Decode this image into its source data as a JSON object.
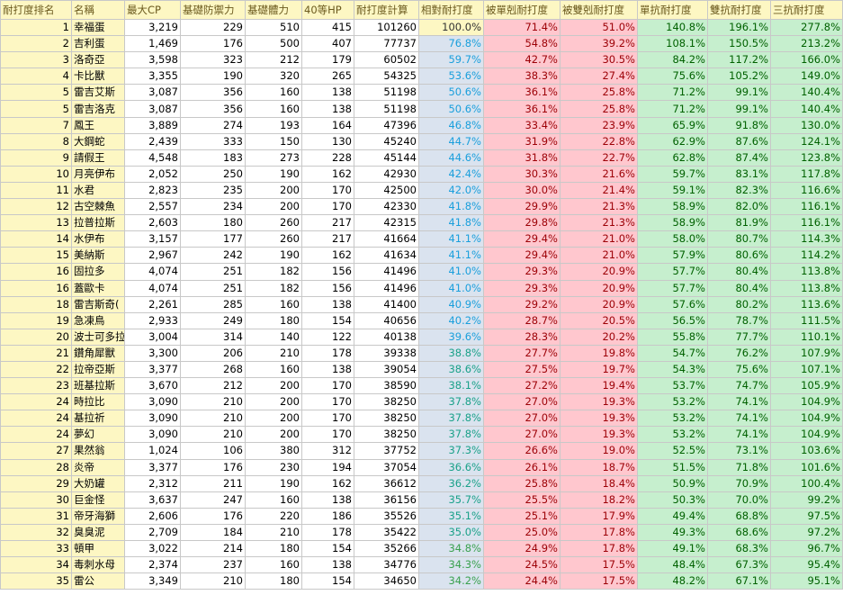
{
  "colors": {
    "header_bg": "#fdf7c3",
    "relative_bg": "#dae3ef",
    "weak_bg": "#ffc7ce",
    "weak_text": "#9c0006",
    "resist_bg": "#c6efce",
    "resist_text": "#006100",
    "relative_blue": "#1a9fdc",
    "relative_teal": "#1aa189",
    "relative_green": "#3aa14f"
  },
  "headers": [
    "耐打度排名",
    "名稱",
    "最大CP",
    "基礎防禦力",
    "基礎體力",
    "40等HP",
    "耐打度計算",
    "相對耐打度",
    "被單剋耐打度",
    "被雙剋耐打度",
    "單抗耐打度",
    "雙抗耐打度",
    "三抗耐打度"
  ],
  "rows": [
    {
      "rank": "1",
      "name": "幸福蛋",
      "cp": "3,219",
      "def": "229",
      "sta": "510",
      "hp": "415",
      "calc": "101260",
      "rel": "100.0%",
      "one": "71.4%",
      "two": "51.0%",
      "r1": "140.8%",
      "r2": "196.1%",
      "r3": "277.8%"
    },
    {
      "rank": "2",
      "name": "吉利蛋",
      "cp": "1,469",
      "def": "176",
      "sta": "500",
      "hp": "407",
      "calc": "77737",
      "rel": "76.8%",
      "one": "54.8%",
      "two": "39.2%",
      "r1": "108.1%",
      "r2": "150.5%",
      "r3": "213.2%"
    },
    {
      "rank": "3",
      "name": "洛奇亞",
      "cp": "3,598",
      "def": "323",
      "sta": "212",
      "hp": "179",
      "calc": "60502",
      "rel": "59.7%",
      "one": "42.7%",
      "two": "30.5%",
      "r1": "84.2%",
      "r2": "117.2%",
      "r3": "166.0%"
    },
    {
      "rank": "4",
      "name": "卡比獸",
      "cp": "3,355",
      "def": "190",
      "sta": "320",
      "hp": "265",
      "calc": "54325",
      "rel": "53.6%",
      "one": "38.3%",
      "two": "27.4%",
      "r1": "75.6%",
      "r2": "105.2%",
      "r3": "149.0%"
    },
    {
      "rank": "5",
      "name": "雷吉艾斯",
      "cp": "3,087",
      "def": "356",
      "sta": "160",
      "hp": "138",
      "calc": "51198",
      "rel": "50.6%",
      "one": "36.1%",
      "two": "25.8%",
      "r1": "71.2%",
      "r2": "99.1%",
      "r3": "140.4%"
    },
    {
      "rank": "5",
      "name": "雷吉洛克",
      "cp": "3,087",
      "def": "356",
      "sta": "160",
      "hp": "138",
      "calc": "51198",
      "rel": "50.6%",
      "one": "36.1%",
      "two": "25.8%",
      "r1": "71.2%",
      "r2": "99.1%",
      "r3": "140.4%"
    },
    {
      "rank": "7",
      "name": "鳳王",
      "cp": "3,889",
      "def": "274",
      "sta": "193",
      "hp": "164",
      "calc": "47396",
      "rel": "46.8%",
      "one": "33.4%",
      "two": "23.9%",
      "r1": "65.9%",
      "r2": "91.8%",
      "r3": "130.0%"
    },
    {
      "rank": "8",
      "name": "大鋼蛇",
      "cp": "2,439",
      "def": "333",
      "sta": "150",
      "hp": "130",
      "calc": "45240",
      "rel": "44.7%",
      "one": "31.9%",
      "two": "22.8%",
      "r1": "62.9%",
      "r2": "87.6%",
      "r3": "124.1%"
    },
    {
      "rank": "9",
      "name": "請假王",
      "cp": "4,548",
      "def": "183",
      "sta": "273",
      "hp": "228",
      "calc": "45144",
      "rel": "44.6%",
      "one": "31.8%",
      "two": "22.7%",
      "r1": "62.8%",
      "r2": "87.4%",
      "r3": "123.8%"
    },
    {
      "rank": "10",
      "name": "月亮伊布",
      "cp": "2,052",
      "def": "250",
      "sta": "190",
      "hp": "162",
      "calc": "42930",
      "rel": "42.4%",
      "one": "30.3%",
      "two": "21.6%",
      "r1": "59.7%",
      "r2": "83.1%",
      "r3": "117.8%"
    },
    {
      "rank": "11",
      "name": "水君",
      "cp": "2,823",
      "def": "235",
      "sta": "200",
      "hp": "170",
      "calc": "42500",
      "rel": "42.0%",
      "one": "30.0%",
      "two": "21.4%",
      "r1": "59.1%",
      "r2": "82.3%",
      "r3": "116.6%"
    },
    {
      "rank": "12",
      "name": "古空棘魚",
      "cp": "2,557",
      "def": "234",
      "sta": "200",
      "hp": "170",
      "calc": "42330",
      "rel": "41.8%",
      "one": "29.9%",
      "two": "21.3%",
      "r1": "58.9%",
      "r2": "82.0%",
      "r3": "116.1%"
    },
    {
      "rank": "13",
      "name": "拉普拉斯",
      "cp": "2,603",
      "def": "180",
      "sta": "260",
      "hp": "217",
      "calc": "42315",
      "rel": "41.8%",
      "one": "29.8%",
      "two": "21.3%",
      "r1": "58.9%",
      "r2": "81.9%",
      "r3": "116.1%"
    },
    {
      "rank": "14",
      "name": "水伊布",
      "cp": "3,157",
      "def": "177",
      "sta": "260",
      "hp": "217",
      "calc": "41664",
      "rel": "41.1%",
      "one": "29.4%",
      "two": "21.0%",
      "r1": "58.0%",
      "r2": "80.7%",
      "r3": "114.3%"
    },
    {
      "rank": "15",
      "name": "美納斯",
      "cp": "2,967",
      "def": "242",
      "sta": "190",
      "hp": "162",
      "calc": "41634",
      "rel": "41.1%",
      "one": "29.4%",
      "two": "21.0%",
      "r1": "57.9%",
      "r2": "80.6%",
      "r3": "114.2%"
    },
    {
      "rank": "16",
      "name": "固拉多",
      "cp": "4,074",
      "def": "251",
      "sta": "182",
      "hp": "156",
      "calc": "41496",
      "rel": "41.0%",
      "one": "29.3%",
      "two": "20.9%",
      "r1": "57.7%",
      "r2": "80.4%",
      "r3": "113.8%"
    },
    {
      "rank": "16",
      "name": "蓋歐卡",
      "cp": "4,074",
      "def": "251",
      "sta": "182",
      "hp": "156",
      "calc": "41496",
      "rel": "41.0%",
      "one": "29.3%",
      "two": "20.9%",
      "r1": "57.7%",
      "r2": "80.4%",
      "r3": "113.8%"
    },
    {
      "rank": "18",
      "name": "雷吉斯奇(",
      "cp": "2,261",
      "def": "285",
      "sta": "160",
      "hp": "138",
      "calc": "41400",
      "rel": "40.9%",
      "one": "29.2%",
      "two": "20.9%",
      "r1": "57.6%",
      "r2": "80.2%",
      "r3": "113.6%"
    },
    {
      "rank": "19",
      "name": "急凍鳥",
      "cp": "2,933",
      "def": "249",
      "sta": "180",
      "hp": "154",
      "calc": "40656",
      "rel": "40.2%",
      "one": "28.7%",
      "two": "20.5%",
      "r1": "56.5%",
      "r2": "78.7%",
      "r3": "111.5%"
    },
    {
      "rank": "20",
      "name": "波士可多拉",
      "cp": "3,004",
      "def": "314",
      "sta": "140",
      "hp": "122",
      "calc": "40138",
      "rel": "39.6%",
      "one": "28.3%",
      "two": "20.2%",
      "r1": "55.8%",
      "r2": "77.7%",
      "r3": "110.1%"
    },
    {
      "rank": "21",
      "name": "鑽角犀獸",
      "cp": "3,300",
      "def": "206",
      "sta": "210",
      "hp": "178",
      "calc": "39338",
      "rel": "38.8%",
      "one": "27.7%",
      "two": "19.8%",
      "r1": "54.7%",
      "r2": "76.2%",
      "r3": "107.9%"
    },
    {
      "rank": "22",
      "name": "拉帝亞斯",
      "cp": "3,377",
      "def": "268",
      "sta": "160",
      "hp": "138",
      "calc": "39054",
      "rel": "38.6%",
      "one": "27.5%",
      "two": "19.7%",
      "r1": "54.3%",
      "r2": "75.6%",
      "r3": "107.1%"
    },
    {
      "rank": "23",
      "name": "班基拉斯",
      "cp": "3,670",
      "def": "212",
      "sta": "200",
      "hp": "170",
      "calc": "38590",
      "rel": "38.1%",
      "one": "27.2%",
      "two": "19.4%",
      "r1": "53.7%",
      "r2": "74.7%",
      "r3": "105.9%"
    },
    {
      "rank": "24",
      "name": "時拉比",
      "cp": "3,090",
      "def": "210",
      "sta": "200",
      "hp": "170",
      "calc": "38250",
      "rel": "37.8%",
      "one": "27.0%",
      "two": "19.3%",
      "r1": "53.2%",
      "r2": "74.1%",
      "r3": "104.9%"
    },
    {
      "rank": "24",
      "name": "基拉祈",
      "cp": "3,090",
      "def": "210",
      "sta": "200",
      "hp": "170",
      "calc": "38250",
      "rel": "37.8%",
      "one": "27.0%",
      "two": "19.3%",
      "r1": "53.2%",
      "r2": "74.1%",
      "r3": "104.9%"
    },
    {
      "rank": "24",
      "name": "夢幻",
      "cp": "3,090",
      "def": "210",
      "sta": "200",
      "hp": "170",
      "calc": "38250",
      "rel": "37.8%",
      "one": "27.0%",
      "two": "19.3%",
      "r1": "53.2%",
      "r2": "74.1%",
      "r3": "104.9%"
    },
    {
      "rank": "27",
      "name": "果然翁",
      "cp": "1,024",
      "def": "106",
      "sta": "380",
      "hp": "312",
      "calc": "37752",
      "rel": "37.3%",
      "one": "26.6%",
      "two": "19.0%",
      "r1": "52.5%",
      "r2": "73.1%",
      "r3": "103.6%"
    },
    {
      "rank": "28",
      "name": "炎帝",
      "cp": "3,377",
      "def": "176",
      "sta": "230",
      "hp": "194",
      "calc": "37054",
      "rel": "36.6%",
      "one": "26.1%",
      "two": "18.7%",
      "r1": "51.5%",
      "r2": "71.8%",
      "r3": "101.6%"
    },
    {
      "rank": "29",
      "name": "大奶罐",
      "cp": "2,312",
      "def": "211",
      "sta": "190",
      "hp": "162",
      "calc": "36612",
      "rel": "36.2%",
      "one": "25.8%",
      "two": "18.4%",
      "r1": "50.9%",
      "r2": "70.9%",
      "r3": "100.4%"
    },
    {
      "rank": "30",
      "name": "巨金怪",
      "cp": "3,637",
      "def": "247",
      "sta": "160",
      "hp": "138",
      "calc": "36156",
      "rel": "35.7%",
      "one": "25.5%",
      "two": "18.2%",
      "r1": "50.3%",
      "r2": "70.0%",
      "r3": "99.2%"
    },
    {
      "rank": "31",
      "name": "帝牙海獅",
      "cp": "2,606",
      "def": "176",
      "sta": "220",
      "hp": "186",
      "calc": "35526",
      "rel": "35.1%",
      "one": "25.1%",
      "two": "17.9%",
      "r1": "49.4%",
      "r2": "68.8%",
      "r3": "97.5%"
    },
    {
      "rank": "32",
      "name": "臭臭泥",
      "cp": "2,709",
      "def": "184",
      "sta": "210",
      "hp": "178",
      "calc": "35422",
      "rel": "35.0%",
      "one": "25.0%",
      "two": "17.8%",
      "r1": "49.3%",
      "r2": "68.6%",
      "r3": "97.2%"
    },
    {
      "rank": "33",
      "name": "頓甲",
      "cp": "3,022",
      "def": "214",
      "sta": "180",
      "hp": "154",
      "calc": "35266",
      "rel": "34.8%",
      "one": "24.9%",
      "two": "17.8%",
      "r1": "49.1%",
      "r2": "68.3%",
      "r3": "96.7%"
    },
    {
      "rank": "34",
      "name": "毒刺水母",
      "cp": "2,374",
      "def": "237",
      "sta": "160",
      "hp": "138",
      "calc": "34776",
      "rel": "34.3%",
      "one": "24.5%",
      "two": "17.5%",
      "r1": "48.4%",
      "r2": "67.3%",
      "r3": "95.4%"
    },
    {
      "rank": "35",
      "name": "雷公",
      "cp": "3,349",
      "def": "210",
      "sta": "180",
      "hp": "154",
      "calc": "34650",
      "rel": "34.2%",
      "one": "24.4%",
      "two": "17.5%",
      "r1": "48.2%",
      "r2": "67.1%",
      "r3": "95.1%"
    }
  ]
}
